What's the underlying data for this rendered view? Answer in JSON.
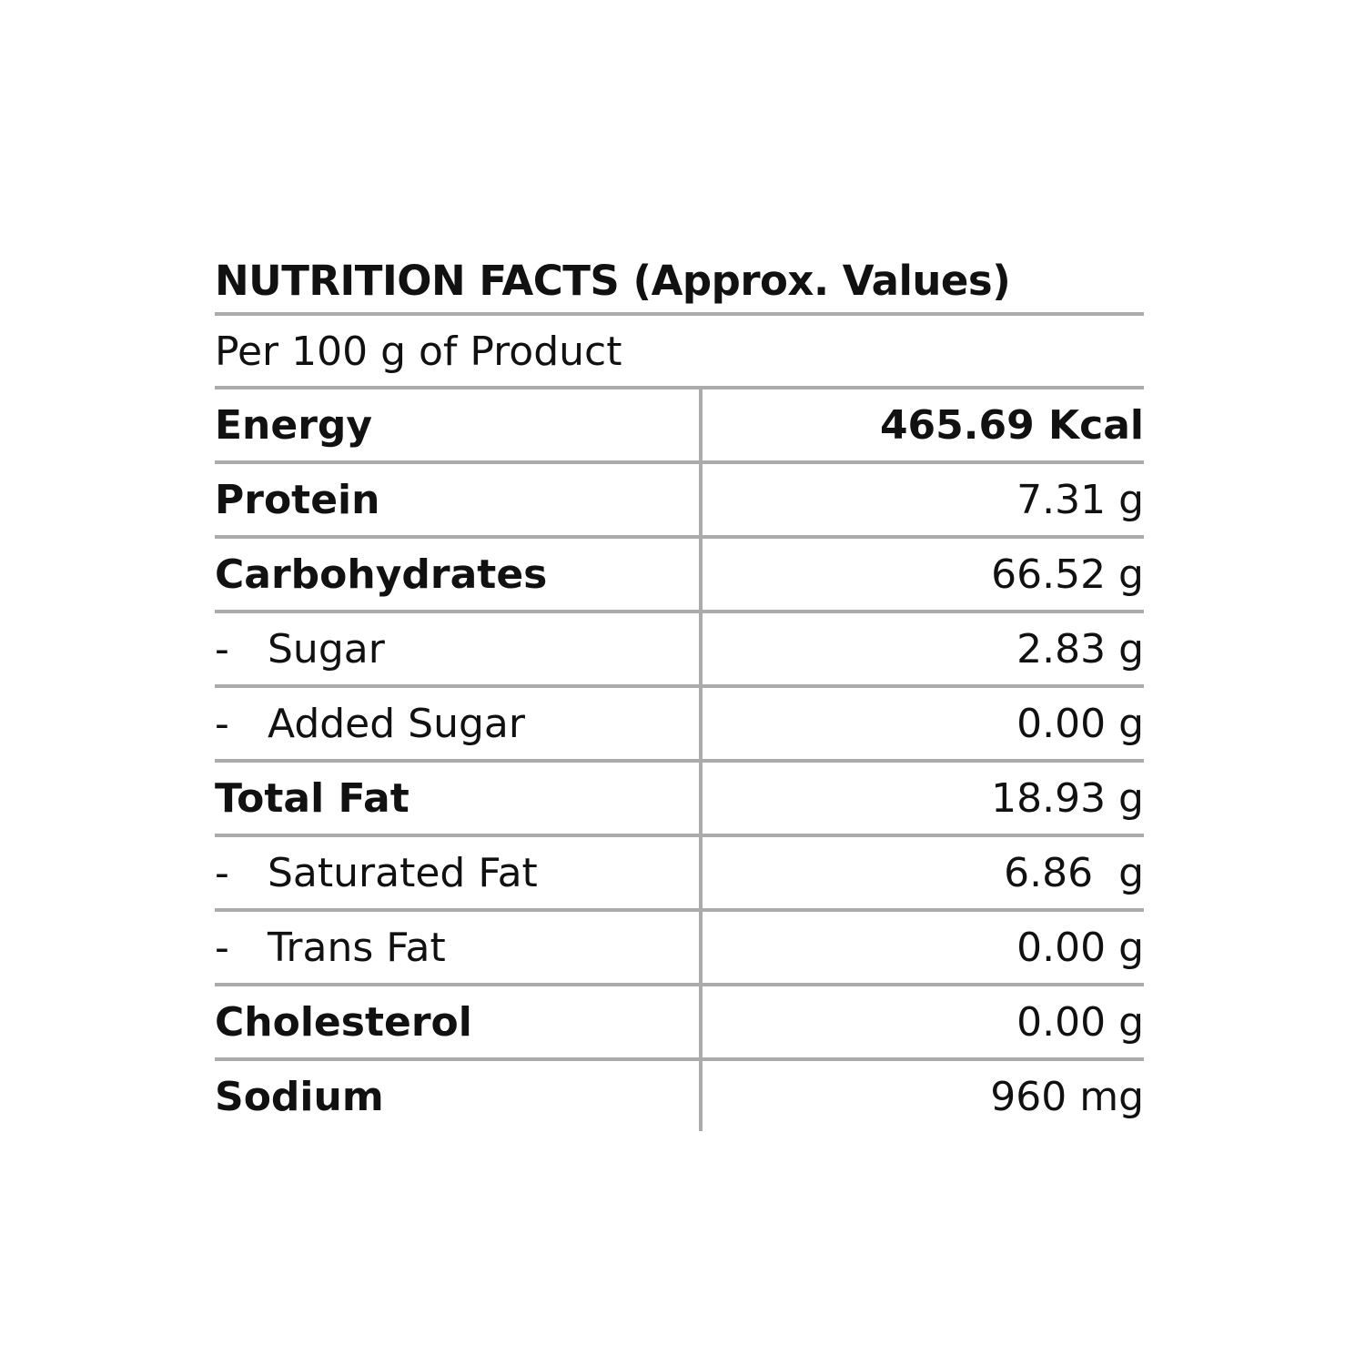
{
  "title": "NUTRITION FACTS (Approx. Values)",
  "subtitle": "Per 100 g of Product",
  "rows": [
    {
      "dash": "",
      "label": "Energy",
      "value": "465.69 Kcal"
    },
    {
      "dash": "",
      "label": "Protein",
      "value": "7.31 g"
    },
    {
      "dash": "",
      "label": "Carbohydrates",
      "value": "66.52 g"
    },
    {
      "dash": "-",
      "label": "Sugar",
      "value": "2.83 g"
    },
    {
      "dash": "-",
      "label": "Added Sugar",
      "value": "0.00 g"
    },
    {
      "dash": "",
      "label": "Total Fat",
      "value": "18.93 g"
    },
    {
      "dash": "-",
      "label": "Saturated Fat",
      "value": "6.86  g"
    },
    {
      "dash": "-",
      "label": "Trans Fat",
      "value": "0.00 g"
    },
    {
      "dash": "",
      "label": "Cholesterol",
      "value": "0.00 g"
    },
    {
      "dash": "",
      "label": "Sodium",
      "value": "960 mg"
    }
  ],
  "colors": {
    "text": "#111111",
    "rule": "#ababab",
    "background": "#ffffff"
  }
}
